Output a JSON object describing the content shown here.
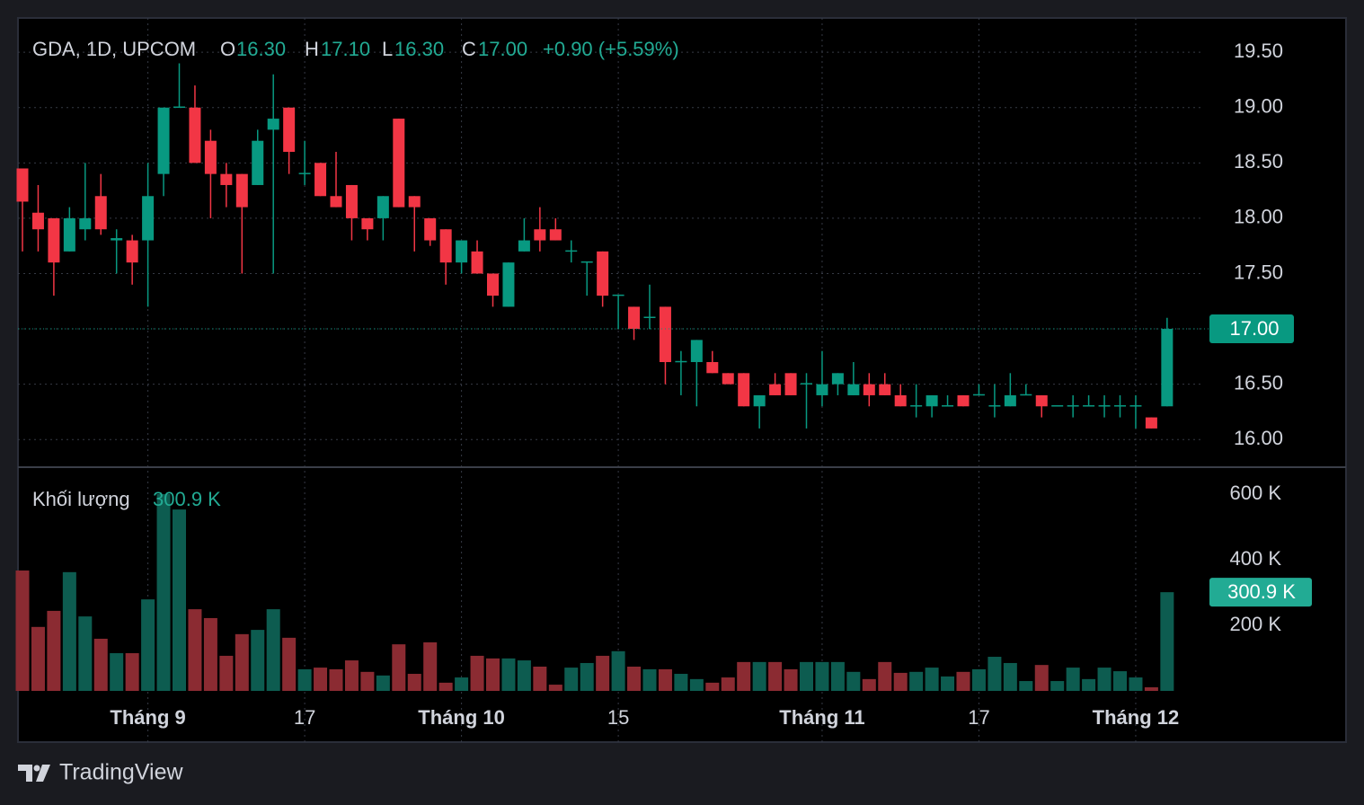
{
  "chart_data": {
    "type": "candlestick",
    "header": {
      "symbol": "GDA, 1D, UPCOM",
      "open_label": "O",
      "open": "16.30",
      "high_label": "H",
      "high": "17.10",
      "low_label": "L",
      "low": "16.30",
      "close_label": "C",
      "close": "17.00",
      "change": "+0.90 (+5.59%)"
    },
    "volume_title": "Khối lượng",
    "last_volume_label": "300.9 K",
    "last_price_label": "17.00",
    "up_color": "#089981",
    "down_color": "#f23645",
    "volume_up_color": "#0d5c50",
    "volume_down_color": "#8b2b32",
    "grid": true,
    "categories": [
      null,
      null,
      null,
      null,
      null,
      null,
      null,
      null,
      "Tháng 9",
      null,
      null,
      null,
      null,
      null,
      null,
      null,
      null,
      null,
      "17",
      null,
      null,
      null,
      null,
      null,
      null,
      null,
      null,
      null,
      "Tháng 10",
      null,
      null,
      null,
      null,
      null,
      null,
      null,
      null,
      null,
      "15",
      null,
      null,
      null,
      null,
      null,
      null,
      null,
      null,
      null,
      null,
      null,
      null,
      "Tháng 11",
      null,
      null,
      null,
      null,
      null,
      null,
      null,
      null,
      null,
      "17",
      null,
      null,
      null,
      null,
      null,
      null,
      null,
      null,
      null,
      "Tháng 12",
      null,
      null
    ],
    "open": [
      18.45,
      18.05,
      18.0,
      17.7,
      17.9,
      18.2,
      17.8,
      17.8,
      17.8,
      18.4,
      19.0,
      19.0,
      18.7,
      18.4,
      18.4,
      18.3,
      18.8,
      19.0,
      18.4,
      18.5,
      18.2,
      18.3,
      18.0,
      18.0,
      18.9,
      18.2,
      18.0,
      17.9,
      17.6,
      17.7,
      17.5,
      17.2,
      17.7,
      17.9,
      17.9,
      17.7,
      17.6,
      17.7,
      17.3,
      17.2,
      17.1,
      17.2,
      16.7,
      16.7,
      16.7,
      16.6,
      16.6,
      16.3,
      16.5,
      16.6,
      16.5,
      16.4,
      16.5,
      16.4,
      16.5,
      16.5,
      16.4,
      16.3,
      16.3,
      16.3,
      16.4,
      16.4,
      16.3,
      16.3,
      16.4,
      16.4,
      16.3,
      16.3,
      16.3,
      16.3,
      16.3,
      16.3,
      16.2,
      16.3
    ],
    "high": [
      18.45,
      18.3,
      18.0,
      18.1,
      18.5,
      18.4,
      17.9,
      17.85,
      18.5,
      19.0,
      19.4,
      19.2,
      18.8,
      18.5,
      18.4,
      18.8,
      19.3,
      19.0,
      18.7,
      18.5,
      18.6,
      18.3,
      18.0,
      18.2,
      18.9,
      18.2,
      18.0,
      17.9,
      17.8,
      17.8,
      17.5,
      17.6,
      18.0,
      18.1,
      18.0,
      17.8,
      17.6,
      17.7,
      17.3,
      17.2,
      17.4,
      17.2,
      16.8,
      16.9,
      16.8,
      16.6,
      16.6,
      16.4,
      16.6,
      16.6,
      16.6,
      16.8,
      16.6,
      16.7,
      16.6,
      16.6,
      16.5,
      16.5,
      16.4,
      16.4,
      16.4,
      16.5,
      16.5,
      16.6,
      16.5,
      16.4,
      16.3,
      16.4,
      16.4,
      16.4,
      16.4,
      16.4,
      16.2,
      17.1
    ],
    "low": [
      17.7,
      17.7,
      17.3,
      17.7,
      17.8,
      17.85,
      17.5,
      17.4,
      17.2,
      18.2,
      19.0,
      18.5,
      18.0,
      18.1,
      17.5,
      18.3,
      17.5,
      18.4,
      18.3,
      18.2,
      18.1,
      17.8,
      17.8,
      17.8,
      18.1,
      17.7,
      17.75,
      17.4,
      17.5,
      17.5,
      17.2,
      17.2,
      17.7,
      17.7,
      17.8,
      17.6,
      17.3,
      17.2,
      17.0,
      16.9,
      17.0,
      16.5,
      16.4,
      16.3,
      16.6,
      16.5,
      16.3,
      16.1,
      16.4,
      16.4,
      16.1,
      16.3,
      16.4,
      16.4,
      16.3,
      16.4,
      16.3,
      16.2,
      16.2,
      16.3,
      16.3,
      16.4,
      16.2,
      16.3,
      16.4,
      16.2,
      16.3,
      16.2,
      16.3,
      16.2,
      16.2,
      16.1,
      16.1,
      16.3
    ],
    "close": [
      18.15,
      17.9,
      17.6,
      18.0,
      18.0,
      17.9,
      17.82,
      17.6,
      18.2,
      19.0,
      19.01,
      18.5,
      18.4,
      18.3,
      18.1,
      18.7,
      18.9,
      18.6,
      18.41,
      18.2,
      18.1,
      18.0,
      17.9,
      18.2,
      18.1,
      18.1,
      17.8,
      17.6,
      17.8,
      17.5,
      17.3,
      17.6,
      17.8,
      17.8,
      17.8,
      17.71,
      17.61,
      17.3,
      17.31,
      17.0,
      17.11,
      16.7,
      16.71,
      16.9,
      16.6,
      16.5,
      16.3,
      16.4,
      16.4,
      16.4,
      16.51,
      16.5,
      16.6,
      16.5,
      16.4,
      16.4,
      16.3,
      16.31,
      16.4,
      16.31,
      16.3,
      16.41,
      16.31,
      16.4,
      16.41,
      16.3,
      16.31,
      16.31,
      16.31,
      16.31,
      16.31,
      16.31,
      16.1,
      17.0
    ],
    "volume": [
      367,
      195,
      244,
      362,
      227,
      159,
      115,
      115,
      279,
      600,
      553,
      249,
      222,
      107,
      173,
      186,
      249,
      162,
      66,
      71,
      66,
      93,
      58,
      47,
      142,
      52,
      148,
      25,
      41,
      107,
      99,
      99,
      93,
      74,
      19,
      71,
      85,
      107,
      121,
      74,
      66,
      66,
      52,
      36,
      25,
      41,
      88,
      88,
      88,
      66,
      88,
      88,
      88,
      58,
      36,
      88,
      55,
      58,
      71,
      44,
      58,
      66,
      104,
      85,
      30,
      79,
      30,
      71,
      36,
      71,
      60,
      41,
      11,
      300.9
    ],
    "ylim": [
      15.75,
      19.81
    ],
    "yticks": [
      {
        "value": 16,
        "label": "16.00"
      },
      {
        "value": 16.5,
        "label": "16.50"
      },
      {
        "value": 17,
        "label": "17.00"
      },
      {
        "value": 17.5,
        "label": "17.50"
      },
      {
        "value": 18,
        "label": "18.00"
      },
      {
        "value": 18.5,
        "label": "18.50"
      },
      {
        "value": 19,
        "label": "19.00"
      },
      {
        "value": 19.5,
        "label": "19.50"
      }
    ],
    "volume_ylim": [
      0,
      682
    ],
    "volume_ticks": [
      {
        "value": 200,
        "label": "200 K"
      },
      {
        "value": 400,
        "label": "400 K"
      },
      {
        "value": 600,
        "label": "600 K"
      }
    ]
  },
  "footer": {
    "brand": "TradingView"
  }
}
